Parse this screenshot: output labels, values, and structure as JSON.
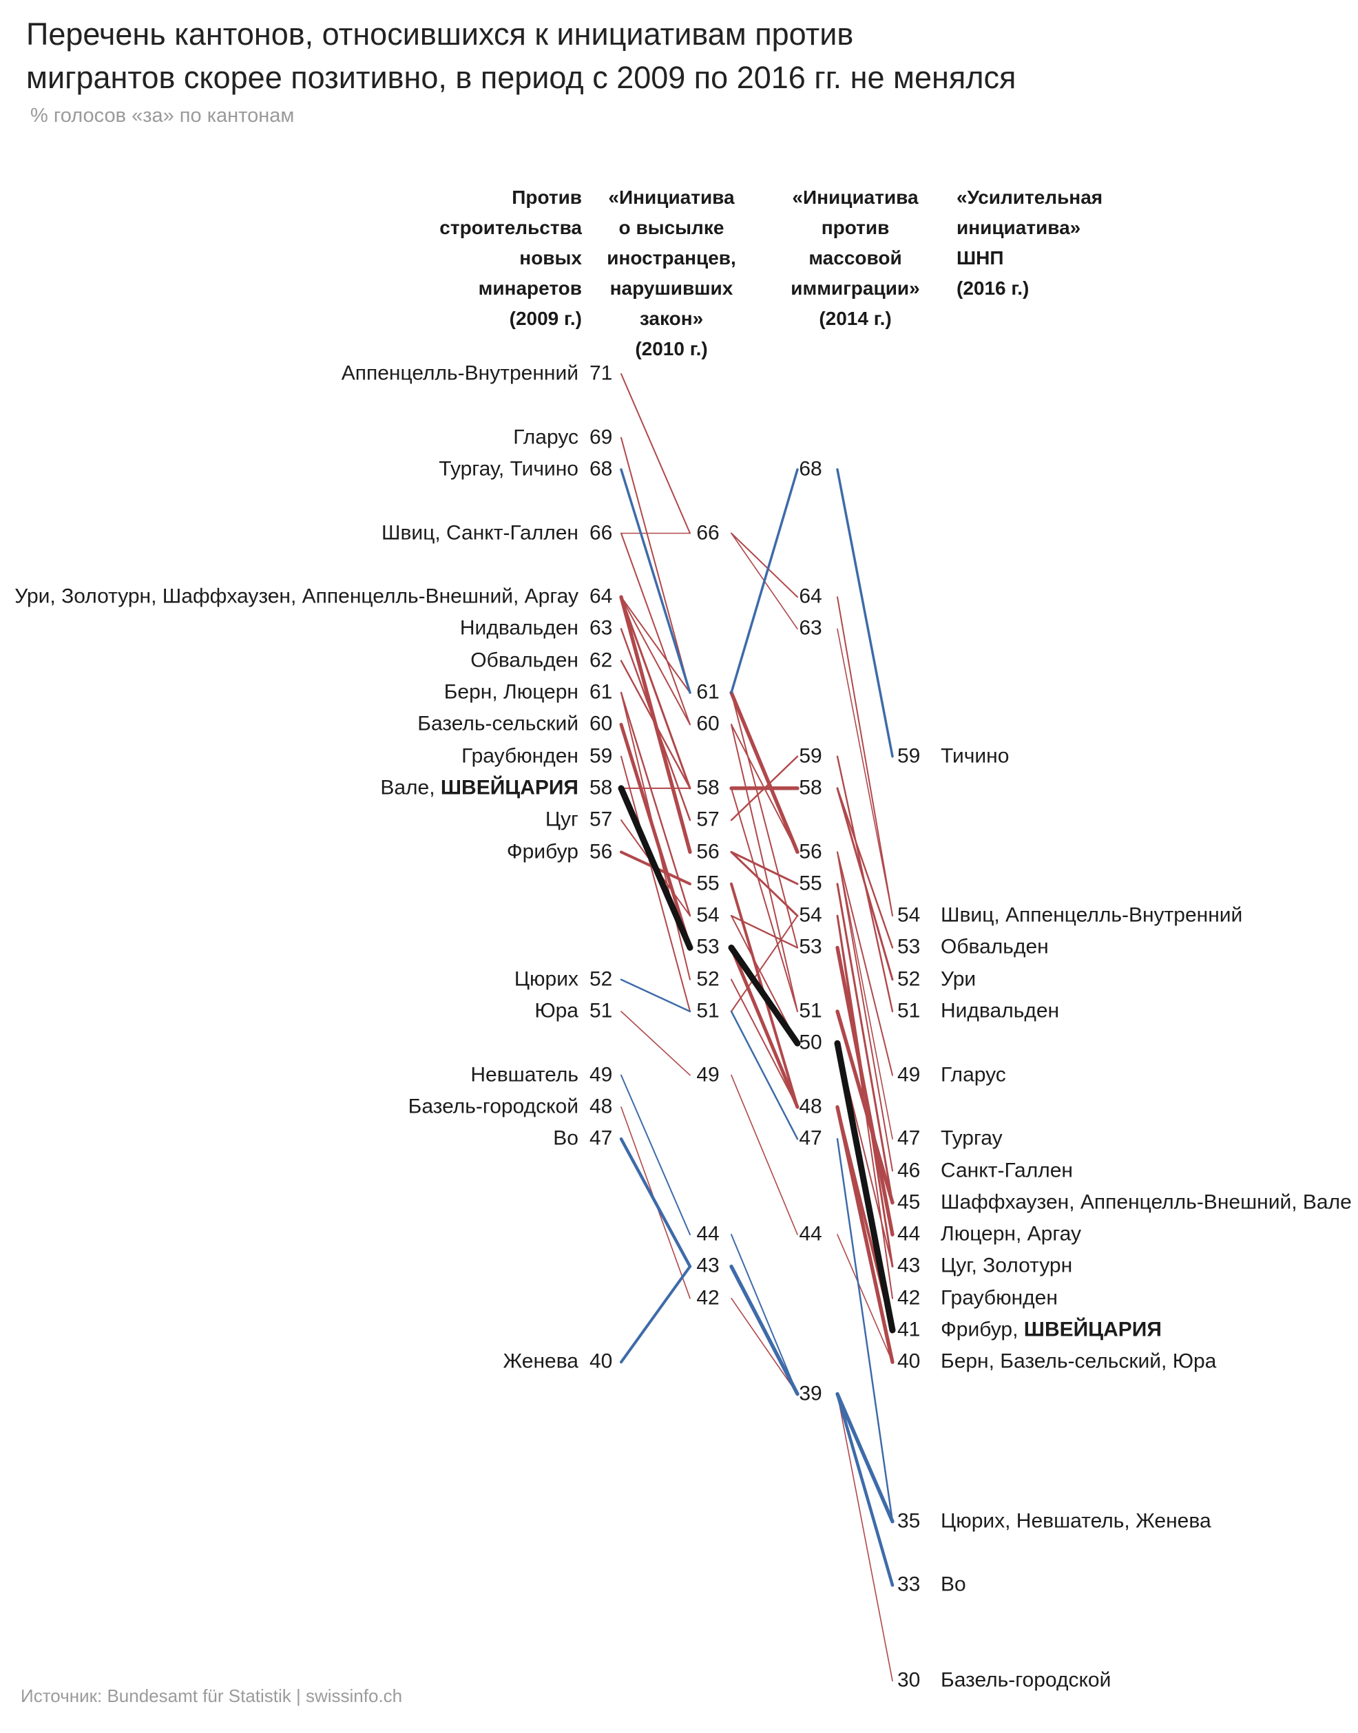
{
  "header": {
    "title_line1": "Перечень кантонов, относившихся к инициативам против",
    "title_line2": "мигрантов скорее позитивно, в период с 2009 по 2016 гг. не менялся",
    "subtitle": "% голосов «за» по кантонам"
  },
  "footer": {
    "source": "Источник: Bundesamt für Statistik | swissinfo.ch"
  },
  "chart_data": {
    "type": "line",
    "subtype": "slope-chart",
    "unit": "% голосов «за» по кантонам",
    "years": [
      2009,
      2010,
      2014,
      2016
    ],
    "columns": [
      {
        "id": "c2009",
        "align": "right",
        "lines": [
          "Против",
          "строительства",
          "новых",
          "минаретов",
          "(2009 г.)"
        ]
      },
      {
        "id": "c2010",
        "align": "center",
        "lines": [
          "«Инициатива",
          "о высылке",
          "иностранцев,",
          "нарушивших",
          "закон»",
          "(2010 г.)"
        ]
      },
      {
        "id": "c2014",
        "align": "center",
        "lines": [
          "«Инициатива",
          "против",
          "массовой",
          "иммиграции»",
          "(2014 г.)"
        ]
      },
      {
        "id": "c2016",
        "align": "left",
        "lines": [
          "«Усилительная",
          "инициатива»",
          "ШНП",
          "(2016 г.)"
        ]
      }
    ],
    "axis": {
      "value_top": 71,
      "value_bottom": 30
    },
    "left_rows": [
      {
        "value": 71,
        "label": "Аппенцелль-Внутренний"
      },
      {
        "value": 69,
        "label": "Гларус"
      },
      {
        "value": 68,
        "label": "Тургау, Тичино"
      },
      {
        "value": 66,
        "label": "Швиц, Санкт-Галлен"
      },
      {
        "value": 64,
        "label": "Ури, Золотурн, Шаффхаузен, Аппенцелль-Внешний, Аргау"
      },
      {
        "value": 63,
        "label": "Нидвальден"
      },
      {
        "value": 62,
        "label": "Обвальден"
      },
      {
        "value": 61,
        "label": "Берн, Люцерн"
      },
      {
        "value": 60,
        "label": "Базель-сельский"
      },
      {
        "value": 59,
        "label": "Граубюнден"
      },
      {
        "value": 58,
        "label": "Вале, ",
        "label_bold": "ШВЕЙЦАРИЯ"
      },
      {
        "value": 57,
        "label": "Цуг"
      },
      {
        "value": 56,
        "label": "Фрибур"
      },
      {
        "value": 52,
        "label": "Цюрих"
      },
      {
        "value": 51,
        "label": "Юра"
      },
      {
        "value": 49,
        "label": "Невшатель"
      },
      {
        "value": 48,
        "label": "Базель-городской"
      },
      {
        "value": 47,
        "label": "Во"
      },
      {
        "value": 40,
        "label": "Женева"
      }
    ],
    "col2010_values": [
      66,
      61,
      60,
      58,
      57,
      56,
      55,
      54,
      53,
      52,
      51,
      49,
      44,
      43,
      42
    ],
    "col2014_values": [
      68,
      64,
      63,
      59,
      58,
      56,
      55,
      54,
      53,
      51,
      50,
      48,
      47,
      44,
      39
    ],
    "right_rows": [
      {
        "value": 59,
        "label": "Тичино"
      },
      {
        "value": 54,
        "label": "Швиц, Аппенцелль-Внутренний"
      },
      {
        "value": 53,
        "label": "Обвальден"
      },
      {
        "value": 52,
        "label": "Ури"
      },
      {
        "value": 51,
        "label": "Нидвальден"
      },
      {
        "value": 49,
        "label": "Гларус"
      },
      {
        "value": 47,
        "label": "Тургау"
      },
      {
        "value": 46,
        "label": "Санкт-Галлен"
      },
      {
        "value": 45,
        "label": "Шаффхаузен, Аппенцелль-Внешний, Вале"
      },
      {
        "value": 44,
        "label": "Люцерн, Аргау"
      },
      {
        "value": 43,
        "label": "Цуг, Золотурн"
      },
      {
        "value": 42,
        "label": "Граубюнден"
      },
      {
        "value": 41,
        "label": "Фрибур, ",
        "label_bold": "ШВЕЙЦАРИЯ"
      },
      {
        "value": 40,
        "label": "Берн, Базель-сельский, Юра"
      },
      {
        "value": 35,
        "label": "Цюрих, Невшатель, Женева"
      },
      {
        "value": 33,
        "label": "Во"
      },
      {
        "value": 30,
        "label": "Базель-городской"
      }
    ],
    "series": [
      {
        "name": "Аппенцелль-Внутренний",
        "values": [
          71,
          66,
          64,
          54
        ],
        "color": "red",
        "w": 2
      },
      {
        "name": "Гларус",
        "values": [
          69,
          61,
          56,
          49
        ],
        "color": "red",
        "w": 2
      },
      {
        "name": "Тургау",
        "values": [
          68,
          61,
          56,
          47
        ],
        "color": "red",
        "w": 1.6
      },
      {
        "name": "Тичино",
        "values": [
          68,
          61,
          68,
          59
        ],
        "color": "blue",
        "w": 3.5
      },
      {
        "name": "Швиц",
        "values": [
          66,
          66,
          63,
          54
        ],
        "color": "red",
        "w": 1.6
      },
      {
        "name": "Санкт-Галлен",
        "values": [
          66,
          60,
          56,
          46
        ],
        "color": "red",
        "w": 2
      },
      {
        "name": "Ури",
        "values": [
          64,
          58,
          58,
          52
        ],
        "color": "red",
        "w": 3
      },
      {
        "name": "Золотурн",
        "values": [
          64,
          56,
          54,
          43
        ],
        "color": "red",
        "w": 3
      },
      {
        "name": "Шаффхаузен",
        "values": [
          64,
          60,
          51,
          45
        ],
        "color": "red",
        "w": 2
      },
      {
        "name": "Аппенцелль-Внешний",
        "values": [
          64,
          56,
          55,
          45
        ],
        "color": "red",
        "w": 3
      },
      {
        "name": "Аргау",
        "values": [
          64,
          61,
          53,
          44
        ],
        "color": "red",
        "w": 2
      },
      {
        "name": "Нидвальден",
        "values": [
          63,
          57,
          59,
          51
        ],
        "color": "red",
        "w": 2.4
      },
      {
        "name": "Обвальден",
        "values": [
          62,
          58,
          58,
          53
        ],
        "color": "red",
        "w": 2.4
      },
      {
        "name": "Берн",
        "values": [
          61,
          52,
          48,
          40
        ],
        "color": "red",
        "w": 2
      },
      {
        "name": "Люцерн",
        "values": [
          61,
          54,
          53,
          44
        ],
        "color": "red",
        "w": 2.4
      },
      {
        "name": "Базель-сельский",
        "values": [
          60,
          53,
          48,
          40
        ],
        "color": "red",
        "w": 5
      },
      {
        "name": "Граубюнден",
        "values": [
          59,
          51,
          54,
          42
        ],
        "color": "red",
        "w": 2
      },
      {
        "name": "Вале",
        "values": [
          58,
          58,
          51,
          45
        ],
        "color": "red",
        "w": 2
      },
      {
        "name": "ШВЕЙЦАРИЯ",
        "values": [
          58,
          53,
          50,
          41
        ],
        "color": "black",
        "w": 9
      },
      {
        "name": "Цуг",
        "values": [
          57,
          54,
          50,
          43
        ],
        "color": "red",
        "w": 2
      },
      {
        "name": "Фрибур",
        "values": [
          56,
          55,
          48,
          41
        ],
        "color": "red",
        "w": 4
      },
      {
        "name": "Цюрих",
        "values": [
          52,
          51,
          47,
          35
        ],
        "color": "blue",
        "w": 2.5
      },
      {
        "name": "Юра",
        "values": [
          51,
          49,
          44,
          40
        ],
        "color": "red",
        "w": 1.6
      },
      {
        "name": "Невшатель",
        "values": [
          49,
          44,
          39,
          35
        ],
        "color": "blue",
        "w": 2
      },
      {
        "name": "Базель-городской",
        "values": [
          48,
          42,
          39,
          30
        ],
        "color": "red",
        "w": 1.6
      },
      {
        "name": "Во",
        "values": [
          47,
          43,
          39,
          33
        ],
        "color": "blue",
        "w": 4.5
      },
      {
        "name": "Женева",
        "values": [
          40,
          43,
          39,
          35
        ],
        "color": "blue",
        "w": 4
      }
    ],
    "styles": {
      "red": "#b0484b",
      "blue": "#3e6ba9",
      "black": "#141414",
      "shared_segment_width": 5.2
    }
  }
}
